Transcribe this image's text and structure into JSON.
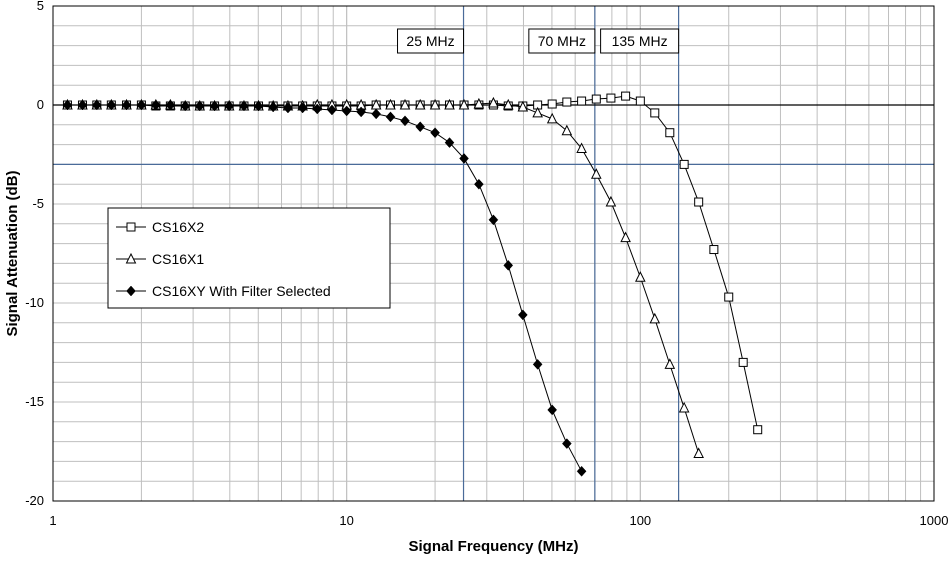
{
  "chart_data": {
    "type": "line",
    "title": "",
    "xlabel": "Signal Frequency (MHz)",
    "ylabel": "Signal Attenuation (dB)",
    "xscale": "log",
    "xlim": [
      1,
      1000
    ],
    "ylim": [
      -20,
      5
    ],
    "grid": true,
    "legend_position": "left",
    "x_tick_labels": [
      "1",
      "10",
      "100",
      "1000"
    ],
    "y_tick_labels": [
      "5",
      "0",
      "-5",
      "-10",
      "-15",
      "-20"
    ],
    "reference_lines": {
      "horizontal": [
        0,
        -3
      ],
      "vertical": [
        25,
        70,
        135
      ]
    },
    "annotations": [
      {
        "text": "25 MHz",
        "x": 25
      },
      {
        "text": "70 MHz",
        "x": 70
      },
      {
        "text": "135 MHz",
        "x": 135
      }
    ],
    "series": [
      {
        "name": "CS16X2",
        "marker": "open-square",
        "x": [
          1.12,
          1.26,
          1.41,
          1.58,
          1.78,
          2.0,
          2.24,
          2.51,
          2.82,
          3.16,
          3.55,
          3.98,
          4.47,
          5.01,
          5.62,
          6.31,
          7.08,
          7.94,
          8.91,
          10.0,
          11.2,
          12.6,
          14.1,
          15.8,
          17.8,
          20.0,
          22.4,
          25.1,
          28.2,
          31.6,
          35.5,
          39.8,
          44.7,
          50.1,
          56.2,
          63.1,
          70.8,
          79.4,
          89.1,
          100,
          112,
          126,
          141,
          158,
          178,
          200,
          224,
          251
        ],
        "y": [
          0,
          0,
          0,
          0,
          0,
          0,
          -0.05,
          -0.05,
          -0.05,
          -0.05,
          -0.05,
          -0.05,
          -0.05,
          -0.05,
          -0.05,
          -0.05,
          -0.05,
          -0.05,
          -0.05,
          -0.05,
          -0.05,
          0,
          0,
          0,
          0,
          0,
          0,
          0,
          0,
          0,
          -0.05,
          -0.05,
          0,
          0.05,
          0.15,
          0.2,
          0.3,
          0.35,
          0.45,
          0.2,
          -0.4,
          -1.4,
          -3.0,
          -4.9,
          -7.3,
          -9.7,
          -13.0,
          -16.4
        ]
      },
      {
        "name": "CS16X1",
        "marker": "open-triangle",
        "x": [
          1.12,
          1.26,
          1.41,
          1.58,
          1.78,
          2.0,
          2.24,
          2.51,
          2.82,
          3.16,
          3.55,
          3.98,
          4.47,
          5.01,
          5.62,
          6.31,
          7.08,
          7.94,
          8.91,
          10.0,
          11.2,
          12.6,
          14.1,
          15.8,
          17.8,
          20.0,
          22.4,
          25.1,
          28.2,
          31.6,
          35.5,
          39.8,
          44.7,
          50.1,
          56.2,
          63.1,
          70.8,
          79.4,
          89.1,
          100,
          112,
          126,
          141,
          158
        ],
        "y": [
          0,
          0,
          0,
          0,
          0,
          0,
          0,
          0,
          -0.05,
          -0.05,
          -0.05,
          -0.05,
          -0.05,
          -0.05,
          -0.05,
          -0.05,
          -0.05,
          0,
          0,
          0,
          0,
          0,
          0,
          0,
          0,
          0,
          0,
          0,
          0.05,
          0.1,
          0,
          -0.1,
          -0.4,
          -0.7,
          -1.3,
          -2.2,
          -3.5,
          -4.9,
          -6.7,
          -8.7,
          -10.8,
          -13.1,
          -15.3,
          -17.6
        ]
      },
      {
        "name": "CS16XY With Filter Selected",
        "marker": "filled-diamond",
        "x": [
          1.12,
          1.26,
          1.41,
          1.58,
          1.78,
          2.0,
          2.24,
          2.51,
          2.82,
          3.16,
          3.55,
          3.98,
          4.47,
          5.01,
          5.62,
          6.31,
          7.08,
          7.94,
          8.91,
          10.0,
          11.2,
          12.6,
          14.1,
          15.8,
          17.8,
          20.0,
          22.4,
          25.1,
          28.2,
          31.6,
          35.5,
          39.8,
          44.7,
          50.1,
          56.2,
          63.1
        ],
        "y": [
          0,
          0,
          0,
          0,
          0,
          0,
          0,
          0,
          -0.05,
          -0.05,
          -0.05,
          -0.05,
          -0.05,
          -0.05,
          -0.1,
          -0.15,
          -0.15,
          -0.2,
          -0.25,
          -0.3,
          -0.35,
          -0.45,
          -0.6,
          -0.8,
          -1.1,
          -1.4,
          -1.9,
          -2.7,
          -4.0,
          -5.8,
          -8.1,
          -10.6,
          -13.1,
          -15.4,
          -17.1,
          -18.5
        ]
      }
    ]
  },
  "colors": {
    "grid": "#bfbfbf",
    "reference_line": "#4a6b99",
    "zero_line": "#000000",
    "series_line": "#000000"
  }
}
